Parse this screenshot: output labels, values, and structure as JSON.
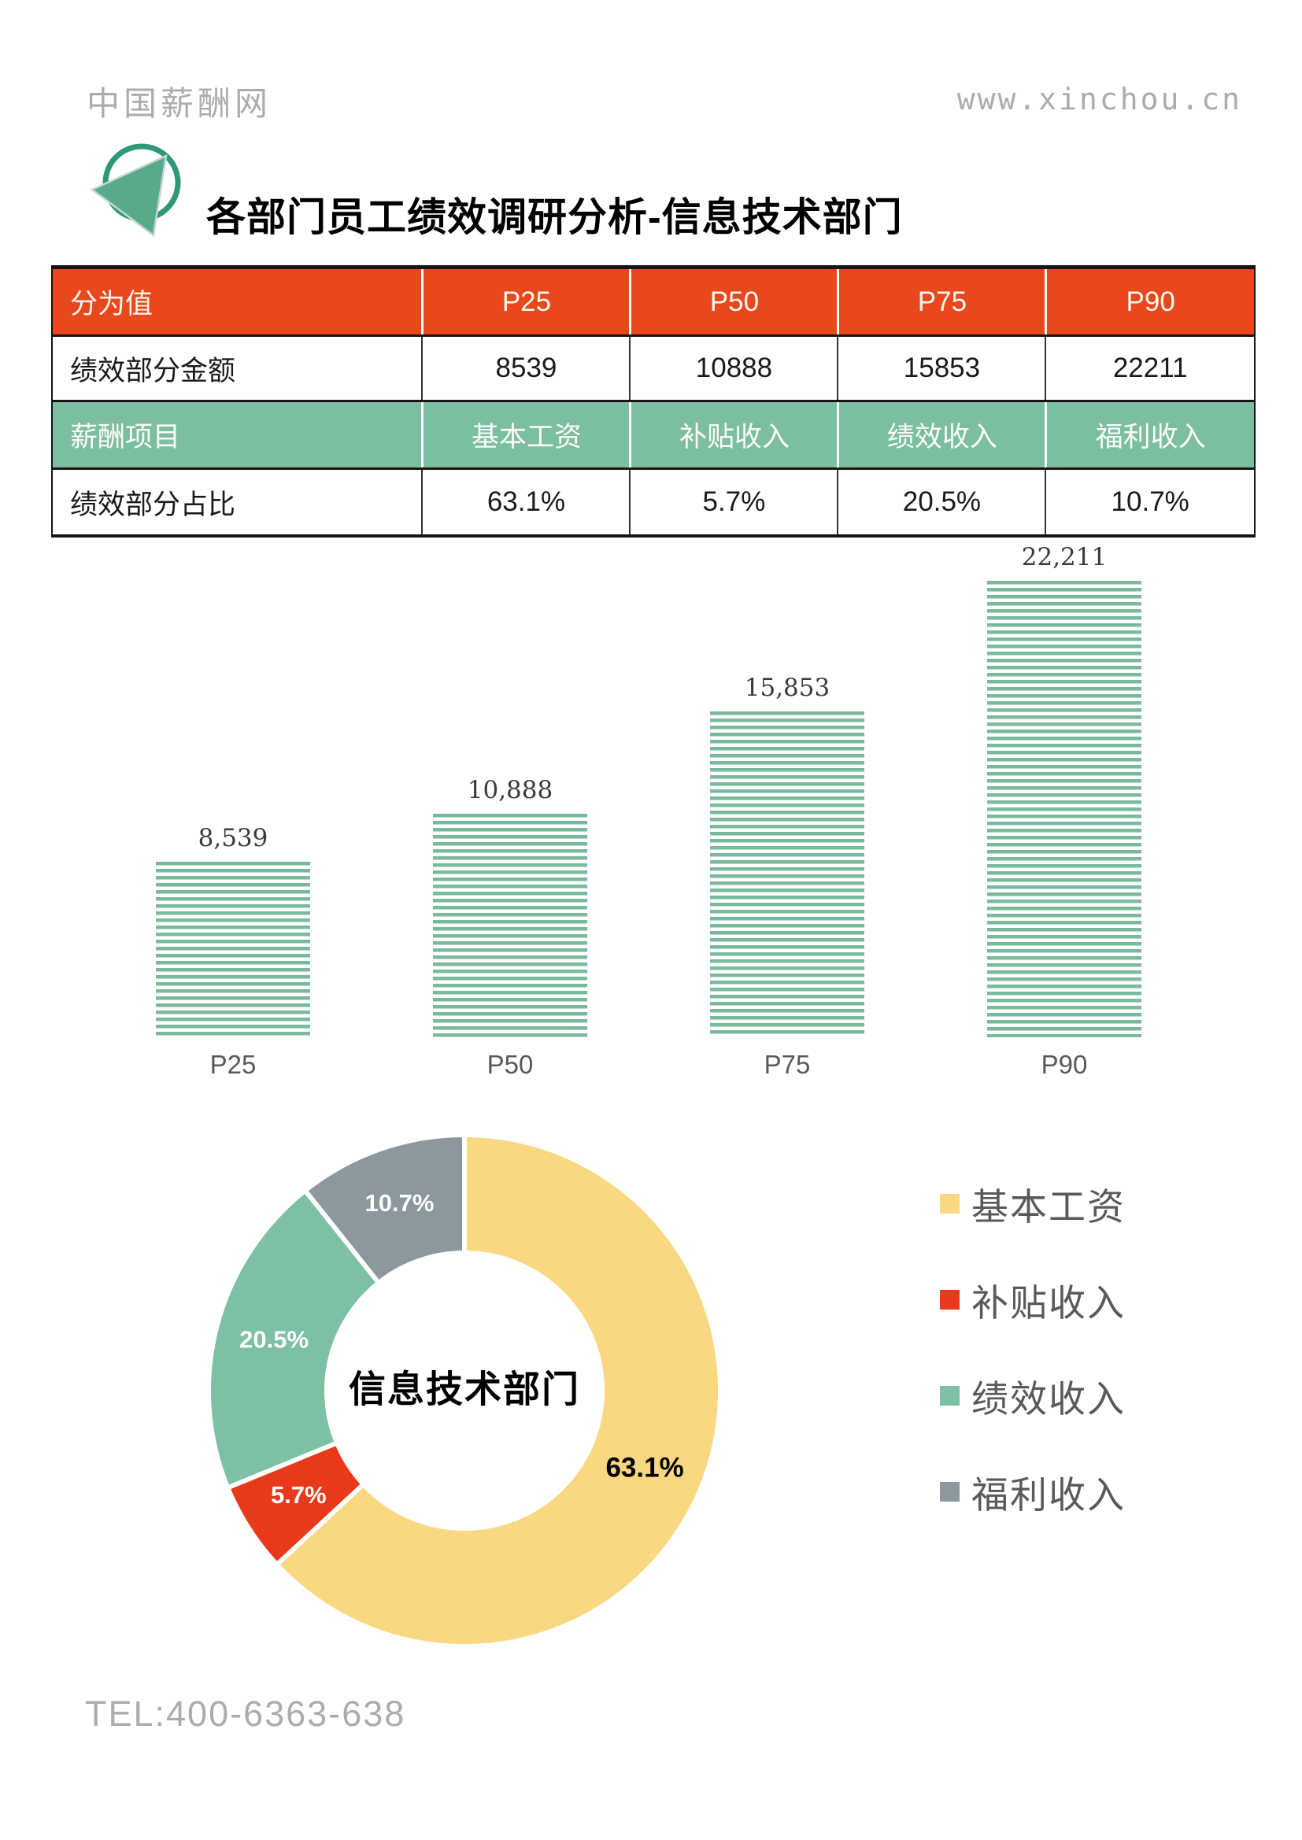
{
  "header": {
    "site_name": "中国薪酬网",
    "site_url": "www.xinchou.cn"
  },
  "title": {
    "text": "各部门员工绩效调研分析-信息技术部门"
  },
  "table": {
    "rows": [
      {
        "label": "分为值",
        "cells": [
          "P25",
          "P50",
          "P75",
          "P90"
        ],
        "style": "red"
      },
      {
        "label": "绩效部分金额",
        "cells": [
          "8539",
          "10888",
          "15853",
          "22211"
        ],
        "style": "white"
      },
      {
        "label": "薪酬项目",
        "cells": [
          "基本工资",
          "补贴收入",
          "绩效收入",
          "福利收入"
        ],
        "style": "green"
      },
      {
        "label": "绩效部分占比",
        "cells": [
          "63.1%",
          "5.7%",
          "20.5%",
          "10.7%"
        ],
        "style": "white"
      }
    ]
  },
  "chart_data": [
    {
      "type": "bar",
      "title": "",
      "categories": [
        "P25",
        "P50",
        "P75",
        "P90"
      ],
      "values": [
        8539,
        10888,
        15853,
        22211
      ],
      "value_labels": [
        "8,539",
        "10,888",
        "15,853",
        "22,211"
      ],
      "xlabel": "",
      "ylabel": "",
      "ylim": [
        0,
        22211
      ],
      "grid": false,
      "bar_style": "horizontal-stripes",
      "bar_color": "#79BA9B",
      "axis_label_color": "#595959"
    },
    {
      "type": "pie",
      "subtype": "donut",
      "direction": "clockwise",
      "start_angle_deg": 0,
      "center_label": "信息技术部门",
      "legend_position": "right",
      "segments": [
        {
          "label": "基本工资",
          "value_pct": 63.1,
          "display": "63.1%",
          "color": "#FAD881",
          "label_color": "#000000"
        },
        {
          "label": "补贴收入",
          "value_pct": 5.7,
          "display": "5.7%",
          "color": "#E8391A",
          "label_color": "#FFFFFF"
        },
        {
          "label": "绩效收入",
          "value_pct": 20.5,
          "display": "20.5%",
          "color": "#7DC0A3",
          "label_color": "#FFFFFF"
        },
        {
          "label": "福利收入",
          "value_pct": 10.7,
          "display": "10.7%",
          "color": "#8C989E",
          "label_color": "#FFFFFF"
        }
      ]
    }
  ],
  "legend": {
    "items": [
      {
        "label": "基本工资",
        "color": "#FAD881"
      },
      {
        "label": "补贴收入",
        "color": "#E8391A"
      },
      {
        "label": "绩效收入",
        "color": "#7DC0A3"
      },
      {
        "label": "福利收入",
        "color": "#8C989E"
      }
    ]
  },
  "footer": {
    "tel": "TEL:400-6363-638"
  },
  "colors": {
    "table_header_red": "#E8481C",
    "table_header_green": "#7BBEA0",
    "bar_stripe_green": "#79BA9B",
    "logo_green": "#2F9878",
    "muted_text": "#ACACAC",
    "gray_text": "#595959"
  }
}
